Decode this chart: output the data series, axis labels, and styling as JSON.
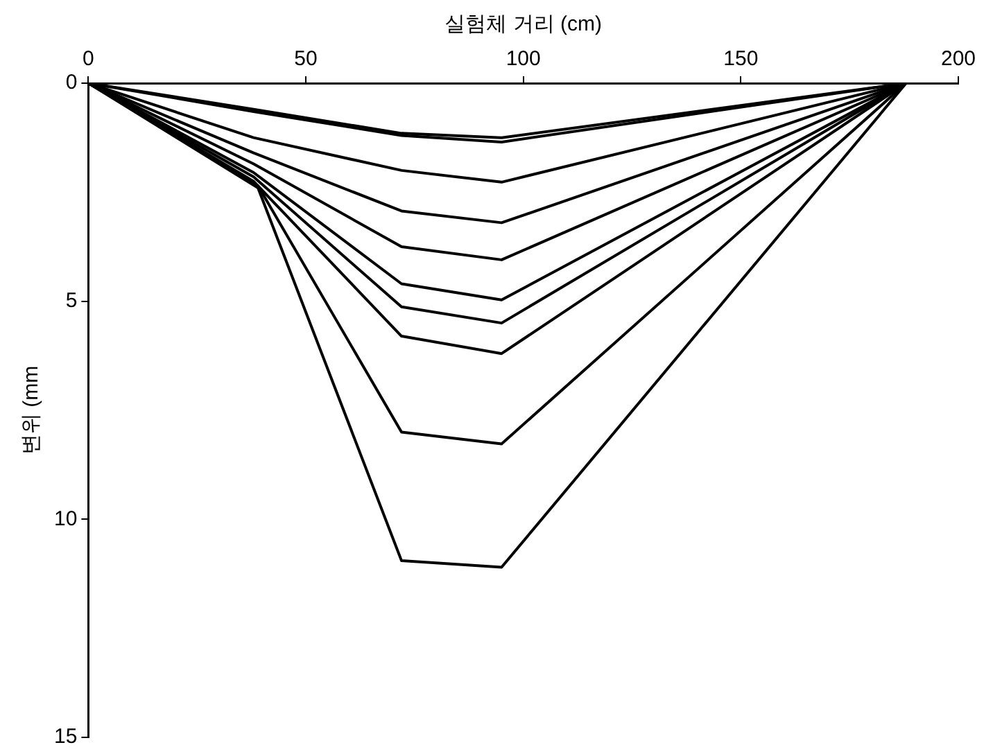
{
  "chart_data": {
    "type": "line",
    "xlabel": "실험체 거리 (cm)",
    "ylabel": "변위 (mm",
    "xlim": [
      0,
      200
    ],
    "xticks": [
      0,
      50,
      100,
      150,
      200
    ],
    "ylim": [
      15,
      0
    ],
    "yticks": [
      0,
      5,
      10,
      15
    ],
    "grid": false,
    "legend": false,
    "marker": "none",
    "line_style": "solid",
    "series": [
      {
        "color": "#000000",
        "x": [
          0,
          38,
          72,
          95,
          188
        ],
        "values": [
          0,
          0.6,
          1.15,
          1.25,
          0
        ]
      },
      {
        "color": "#000000",
        "x": [
          0,
          38,
          72,
          95,
          188
        ],
        "values": [
          0,
          0.65,
          1.2,
          1.35,
          0
        ]
      },
      {
        "color": "#000000",
        "x": [
          0,
          38,
          72,
          95,
          188
        ],
        "values": [
          0,
          1.25,
          2.0,
          2.27,
          0
        ]
      },
      {
        "color": "#000000",
        "x": [
          0,
          38,
          72,
          95,
          188
        ],
        "values": [
          0,
          1.6,
          2.93,
          3.2,
          0
        ]
      },
      {
        "color": "#000000",
        "x": [
          0,
          38,
          72,
          95,
          188
        ],
        "values": [
          0,
          1.85,
          3.75,
          4.05,
          0
        ]
      },
      {
        "color": "#000000",
        "x": [
          0,
          38,
          72,
          95,
          188
        ],
        "values": [
          0,
          2.05,
          4.6,
          4.97,
          0
        ]
      },
      {
        "color": "#000000",
        "x": [
          0,
          38,
          72,
          95,
          188
        ],
        "values": [
          0,
          2.15,
          5.13,
          5.5,
          0
        ]
      },
      {
        "color": "#000000",
        "x": [
          0,
          38,
          72,
          95,
          188
        ],
        "values": [
          0,
          2.25,
          5.8,
          6.2,
          0
        ]
      },
      {
        "color": "#000000",
        "x": [
          0,
          39,
          72,
          95,
          188
        ],
        "values": [
          0,
          2.35,
          8.0,
          8.27,
          0
        ]
      },
      {
        "color": "#000000",
        "x": [
          0,
          39,
          72,
          95,
          188
        ],
        "values": [
          0,
          2.4,
          10.95,
          11.1,
          0
        ]
      }
    ]
  }
}
